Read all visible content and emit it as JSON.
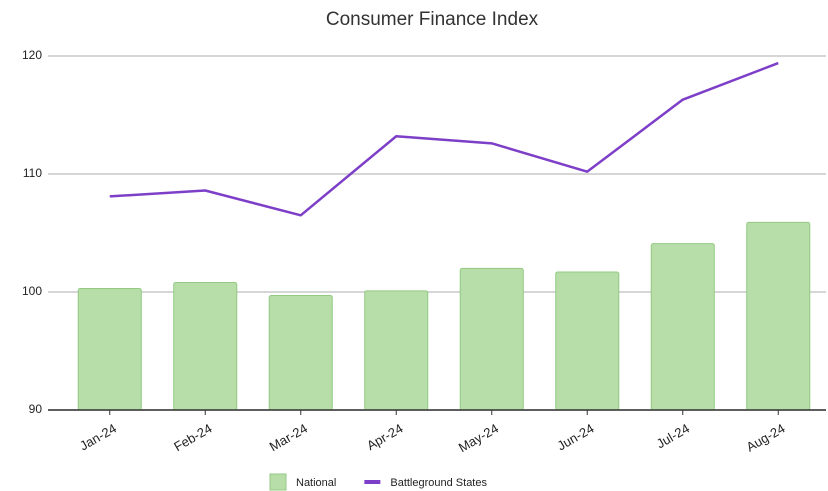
{
  "chart_data": {
    "type": "combo",
    "title": "Consumer Finance Index",
    "categories": [
      "Jan-24",
      "Feb-24",
      "Mar-24",
      "Apr-24",
      "May-24",
      "Jun-24",
      "Jul-24",
      "Aug-24"
    ],
    "series": [
      {
        "name": "National",
        "type": "bar",
        "color": "#b7dea8",
        "values": [
          100.3,
          100.8,
          99.7,
          100.1,
          102.0,
          101.7,
          104.1,
          105.9
        ]
      },
      {
        "name": "Battleground States",
        "type": "line",
        "color": "#7e3fc8",
        "values": [
          108.1,
          108.6,
          106.5,
          113.2,
          112.6,
          110.2,
          116.3,
          119.4
        ]
      }
    ],
    "ylim": [
      90,
      120
    ],
    "yticks": [
      90,
      100,
      110,
      120
    ],
    "grid": true
  }
}
